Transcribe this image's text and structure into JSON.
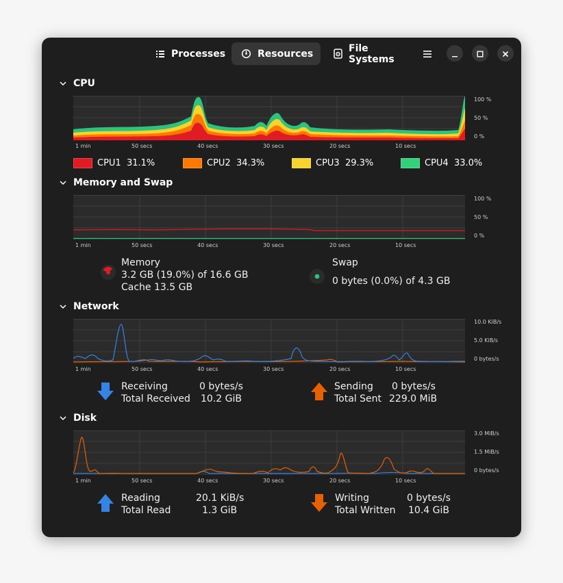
{
  "tabs": [
    {
      "label": "Processes",
      "icon": "list-icon"
    },
    {
      "label": "Resources",
      "icon": "gauge-icon",
      "active": true
    },
    {
      "label": "File Systems",
      "icon": "disk-icon"
    }
  ],
  "window_controls": [
    "menu-icon",
    "minimize-icon",
    "maximize-icon",
    "close-icon"
  ],
  "cpu": {
    "title": "CPU",
    "y_ticks": [
      "100 %",
      "50 %",
      "0 %"
    ],
    "x_ticks": [
      "1 min",
      "50 secs",
      "40 secs",
      "30 secs",
      "20 secs",
      "10 secs"
    ],
    "legend": [
      {
        "name": "CPU1",
        "value": "31.1%",
        "color": "#e01b24"
      },
      {
        "name": "CPU2",
        "value": "34.3%",
        "color": "#ff7800"
      },
      {
        "name": "CPU3",
        "value": "29.3%",
        "color": "#f6d32d"
      },
      {
        "name": "CPU4",
        "value": "33.0%",
        "color": "#33d17a"
      }
    ]
  },
  "memory": {
    "title": "Memory and Swap",
    "y_ticks": [
      "100 %",
      "50 %",
      "0 %"
    ],
    "x_ticks": [
      "1 min",
      "50 secs",
      "40 secs",
      "30 secs",
      "20 secs",
      "10 secs"
    ],
    "mem_label": "Memory",
    "mem_used": "3.2 GB (19.0%) of 16.6 GB",
    "mem_cache": "Cache 13.5 GB",
    "mem_fraction": 0.19,
    "mem_color": "#e01b24",
    "swap_label": "Swap",
    "swap_used": "0 bytes (0.0%) of 4.3 GB",
    "swap_color": "#2ec27e"
  },
  "network": {
    "title": "Network",
    "y_ticks": [
      "10.0 KiB/s",
      "5.0 KiB/s",
      "0 bytes/s"
    ],
    "x_ticks": [
      "1 min",
      "50 secs",
      "40 secs",
      "30 secs",
      "20 secs",
      "10 secs"
    ],
    "receiving_label": "Receiving",
    "receiving_value": "0 bytes/s",
    "total_received_label": "Total Received",
    "total_received_value": "10.2 GiB",
    "sending_label": "Sending",
    "sending_value": "0 bytes/s",
    "total_sent_label": "Total Sent",
    "total_sent_value": "229.0 MiB",
    "recv_color": "#3584e4",
    "send_color": "#e66100"
  },
  "disk": {
    "title": "Disk",
    "y_ticks": [
      "3.0 MiB/s",
      "1.5 MiB/s",
      "0 bytes/s"
    ],
    "x_ticks": [
      "1 min",
      "50 secs",
      "40 secs",
      "30 secs",
      "20 secs",
      "10 secs"
    ],
    "reading_label": "Reading",
    "reading_value": "20.1 KiB/s",
    "total_read_label": "Total Read",
    "total_read_value": "1.3 GiB",
    "writing_label": "Writing",
    "writing_value": "0 bytes/s",
    "total_written_label": "Total Written",
    "total_written_value": "10.4 GiB",
    "read_color": "#3584e4",
    "write_color": "#e66100"
  }
}
